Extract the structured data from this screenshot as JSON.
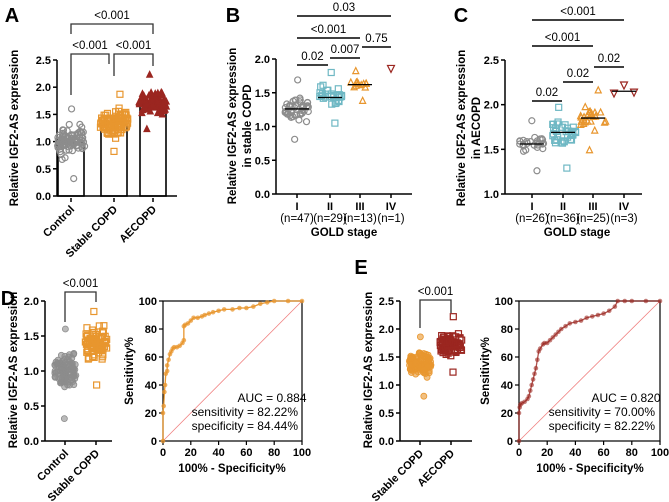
{
  "colors": {
    "control": "#8c8c8c",
    "stable": "#e8962e",
    "aecopd": "#9b2620",
    "stage2": "#6fb8c4",
    "diag": "#f08080",
    "axis": "#000000"
  },
  "chart_data": [
    {
      "panel": "A",
      "type": "bar",
      "ylabel": "Relative IGF2-AS expression",
      "ylim": [
        0,
        2.5
      ],
      "yticks": [
        "0.0",
        "0.5",
        "1.0",
        "1.5",
        "2.0",
        "2.5"
      ],
      "categories": [
        "Control",
        "Stable COPD",
        "AECOPD"
      ],
      "values": [
        0.98,
        1.33,
        1.68
      ],
      "spread": [
        [
          0.32,
          1.6
        ],
        [
          0.82,
          1.87
        ],
        [
          1.23,
          2.23
        ]
      ],
      "comparisons": [
        {
          "groups": [
            "Control",
            "Stable COPD"
          ],
          "p": "<0.001"
        },
        {
          "groups": [
            "Stable COPD",
            "AECOPD"
          ],
          "p": "<0.001"
        },
        {
          "groups": [
            "Control",
            "AECOPD"
          ],
          "p": "<0.001"
        }
      ]
    },
    {
      "panel": "B",
      "type": "scatter",
      "ylabel": [
        "Relative IGF2-AS expression",
        "in stable COPD"
      ],
      "xlabel": "GOLD stage",
      "ylim": [
        0,
        2.0
      ],
      "yticks": [
        "0.0",
        "0.5",
        "1.0",
        "1.5",
        "2.0"
      ],
      "categories": [
        "I",
        "II",
        "III",
        "IV"
      ],
      "n": [
        "(n=47)",
        "(n=29)",
        "(n=13)",
        "(n=1)"
      ],
      "means": [
        1.26,
        1.43,
        1.62,
        1.86
      ],
      "spread": [
        [
          0.81,
          1.69
        ],
        [
          1.05,
          1.8
        ],
        [
          1.38,
          1.82
        ],
        [
          1.86,
          1.86
        ]
      ],
      "comparisons": [
        {
          "groups": [
            "I",
            "II"
          ],
          "p": "0.02"
        },
        {
          "groups": [
            "II",
            "III"
          ],
          "p": "0.007"
        },
        {
          "groups": [
            "III",
            "IV"
          ],
          "p": "0.75"
        },
        {
          "groups": [
            "I",
            "III"
          ],
          "p": "<0.001"
        },
        {
          "groups": [
            "I",
            "IV"
          ],
          "p": "0.03"
        }
      ]
    },
    {
      "panel": "C",
      "type": "scatter",
      "ylabel": [
        "Relative IGF2-AS expression",
        "in AECOPD"
      ],
      "xlabel": "GOLD stage",
      "ylim": [
        1.0,
        2.5
      ],
      "yticks": [
        "1.0",
        "1.5",
        "2.0",
        "2.5"
      ],
      "categories": [
        "I",
        "II",
        "III",
        "IV"
      ],
      "n": [
        "(n=26)",
        "(n=36)",
        "(n=25)",
        "(n=3)"
      ],
      "means": [
        1.56,
        1.69,
        1.85,
        2.15
      ],
      "spread": [
        [
          1.26,
          1.82
        ],
        [
          1.29,
          1.97
        ],
        [
          1.49,
          2.16
        ],
        [
          2.13,
          2.22
        ]
      ],
      "comparisons": [
        {
          "groups": [
            "I",
            "II"
          ],
          "p": "0.02"
        },
        {
          "groups": [
            "II",
            "III"
          ],
          "p": "0.02"
        },
        {
          "groups": [
            "III",
            "IV"
          ],
          "p": "0.02"
        },
        {
          "groups": [
            "I",
            "III"
          ],
          "p": "<0.001"
        },
        {
          "groups": [
            "I",
            "IV"
          ],
          "p": "<0.001"
        }
      ]
    },
    {
      "panel": "D",
      "type": "scatter",
      "ylabel": "Relative IGF2-AS expression",
      "ylim": [
        0,
        2.0
      ],
      "yticks": [
        "0.0",
        "0.5",
        "1.0",
        "1.5",
        "2.0"
      ],
      "categories": [
        "Control",
        "Stable COPD"
      ],
      "means": [
        1.0,
        1.4
      ],
      "spread": [
        [
          0.32,
          1.6
        ],
        [
          0.8,
          1.85
        ]
      ],
      "comparisons": [
        {
          "groups": [
            "Control",
            "Stable COPD"
          ],
          "p": "<0.001"
        }
      ]
    },
    {
      "panel": "D-ROC",
      "type": "line",
      "xlabel": "100% - Specificity%",
      "ylabel": "Sensitivity%",
      "xlim": [
        0,
        100
      ],
      "ylim": [
        0,
        100
      ],
      "ticks": [
        "0",
        "20",
        "40",
        "60",
        "80",
        "100"
      ],
      "x": [
        0,
        0,
        0.5,
        1,
        1.5,
        2,
        3,
        3,
        4,
        5,
        6,
        7,
        8,
        10,
        12,
        14,
        15,
        15,
        16,
        18,
        20,
        22,
        25,
        28,
        30,
        33,
        36,
        40,
        44,
        50,
        55,
        60,
        65,
        70,
        75,
        80,
        90,
        100
      ],
      "y": [
        0,
        20,
        25,
        35,
        40,
        48,
        50,
        54,
        58,
        62,
        64,
        66,
        67,
        67,
        68,
        70,
        72,
        82,
        83,
        84,
        86,
        88,
        88,
        89,
        90,
        91,
        92,
        93,
        94,
        94,
        95,
        95,
        96,
        98,
        99,
        100,
        100,
        100
      ],
      "annotations": [
        "AUC = 0.884",
        "sensitivity = 82.22%",
        "specificity = 84.44%"
      ]
    },
    {
      "panel": "E",
      "type": "scatter",
      "ylabel": "Relative IGF2-AS expression",
      "ylim": [
        0,
        2.5
      ],
      "yticks": [
        "0.0",
        "0.5",
        "1.0",
        "1.5",
        "2.0",
        "2.5"
      ],
      "categories": [
        "Stable COPD",
        "AECOPD"
      ],
      "means": [
        1.38,
        1.72
      ],
      "spread": [
        [
          0.8,
          1.86
        ],
        [
          1.23,
          2.22
        ]
      ],
      "comparisons": [
        {
          "groups": [
            "Stable COPD",
            "AECOPD"
          ],
          "p": "<0.001"
        }
      ]
    },
    {
      "panel": "E-ROC",
      "type": "line",
      "xlabel": "100% - Specificity%",
      "ylabel": "Sensitivity%",
      "xlim": [
        0,
        100
      ],
      "ylim": [
        0,
        100
      ],
      "ticks": [
        "0",
        "20",
        "40",
        "60",
        "80",
        "100"
      ],
      "x": [
        0,
        0,
        0.5,
        1,
        2,
        4,
        6,
        7,
        8,
        9,
        10,
        11,
        12,
        13,
        14,
        15,
        17,
        18,
        20,
        22,
        24,
        26,
        28,
        30,
        33,
        36,
        40,
        44,
        48,
        52,
        56,
        60,
        64,
        68,
        70,
        75,
        80,
        90,
        100
      ],
      "y": [
        0,
        20,
        24,
        26,
        27,
        28,
        30,
        32,
        36,
        40,
        44,
        48,
        52,
        58,
        64,
        66,
        69,
        70,
        70,
        72,
        74,
        76,
        78,
        80,
        82,
        84,
        85,
        86,
        88,
        89,
        90,
        91,
        93,
        96,
        100,
        100,
        100,
        100,
        100
      ],
      "annotations": [
        "AUC = 0.820",
        "sensitivity = 70.00%",
        "specificity = 82.22%"
      ]
    }
  ],
  "panels": {
    "A": "A",
    "B": "B",
    "C": "C",
    "D": "D",
    "E": "E"
  }
}
